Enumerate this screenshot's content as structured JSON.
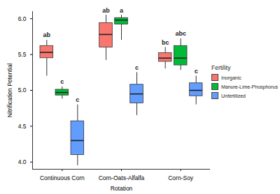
{
  "chart_data": {
    "type": "box",
    "x_label": "Rotation",
    "y_label": "Nitrification Potential",
    "legend_title": "Fertility",
    "legend": "right",
    "grid": false,
    "categories": [
      "Continuous Corn",
      "Corn-Oats-Alfalfa",
      "Corn-Soy"
    ],
    "ylim": [
      3.9,
      6.1
    ],
    "yticks": [
      {
        "value": 4,
        "label": "4.0"
      },
      {
        "value": 4.5,
        "label": "4.5"
      },
      {
        "value": 5,
        "label": "5.0"
      },
      {
        "value": 5.5,
        "label": "5.5"
      },
      {
        "value": 6,
        "label": "6.0"
      }
    ],
    "series": [
      {
        "name": "Inorganic",
        "color": "#F8766D",
        "values": [
          {
            "min": 5.2,
            "q1": 5.45,
            "median": 5.53,
            "q3": 5.62,
            "max": 5.7
          },
          {
            "min": 5.42,
            "q1": 5.6,
            "median": 5.78,
            "q3": 5.94,
            "max": 6.05
          },
          {
            "min": 5.3,
            "q1": 5.4,
            "median": 5.45,
            "q3": 5.52,
            "max": 5.6
          }
        ],
        "letters": [
          "ab",
          "ab",
          "bc"
        ]
      },
      {
        "name": "Manure-Lime-Phosphorus",
        "color": "#00BA38",
        "values": [
          {
            "min": 4.88,
            "q1": 4.93,
            "median": 4.97,
            "q3": 5.01,
            "max": 5.05
          },
          {
            "min": 5.7,
            "q1": 5.92,
            "median": 5.98,
            "q3": 6.01,
            "max": 6.05
          },
          {
            "min": 5.28,
            "q1": 5.35,
            "median": 5.45,
            "q3": 5.62,
            "max": 5.72
          }
        ],
        "letters": [
          "c",
          "a",
          "abc"
        ]
      },
      {
        "name": "Unfertilized",
        "color": "#619CFF",
        "values": [
          {
            "min": 3.95,
            "q1": 4.1,
            "median": 4.3,
            "q3": 4.57,
            "max": 4.8
          },
          {
            "min": 4.65,
            "q1": 4.82,
            "median": 4.95,
            "q3": 5.08,
            "max": 5.25
          },
          {
            "min": 4.8,
            "q1": 4.92,
            "median": 5.0,
            "q3": 5.1,
            "max": 5.2
          }
        ],
        "letters": [
          "c",
          "c",
          "c"
        ]
      }
    ]
  }
}
